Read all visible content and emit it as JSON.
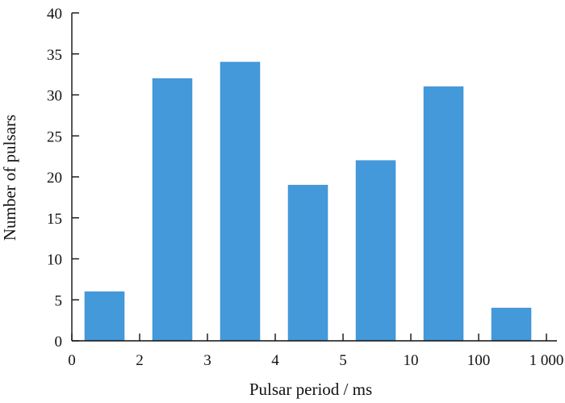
{
  "chart_data": {
    "type": "bar",
    "title": "",
    "xlabel": "Pulsar period / ms",
    "ylabel": "Number of pulsars",
    "x_tick_labels": [
      "0",
      "2",
      "3",
      "4",
      "5",
      "10",
      "100",
      "1 000"
    ],
    "bins": [
      {
        "from": "0",
        "to": "2",
        "value": 6
      },
      {
        "from": "2",
        "to": "3",
        "value": 32
      },
      {
        "from": "3",
        "to": "4",
        "value": 34
      },
      {
        "from": "4",
        "to": "5",
        "value": 19
      },
      {
        "from": "5",
        "to": "10",
        "value": 22
      },
      {
        "from": "10",
        "to": "100",
        "value": 31
      },
      {
        "from": "100",
        "to": "1 000",
        "value": 4
      }
    ],
    "ylim": [
      0,
      40
    ],
    "y_ticks": [
      0,
      5,
      10,
      15,
      20,
      25,
      30,
      35,
      40
    ],
    "bar_color": "#4499db",
    "grid": false,
    "legend": "none"
  }
}
